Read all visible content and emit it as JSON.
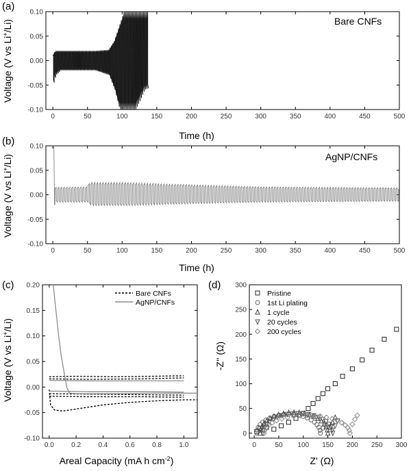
{
  "chart_data": [
    {
      "panel": "(a)",
      "type": "line",
      "annotation": "Bare CNFs",
      "xlabel": "Time (h)",
      "ylabel_parts": [
        "Voltage (V vs Li",
        "+",
        "/Li)"
      ],
      "xlim": [
        -10,
        500
      ],
      "ylim": [
        -0.1,
        0.1
      ],
      "xticks": [
        0,
        50,
        100,
        150,
        200,
        250,
        300,
        350,
        400,
        450,
        500
      ],
      "yticks": [
        -0.1,
        -0.05,
        0.0,
        0.05,
        0.1
      ],
      "ytick_labels": [
        "-0.10",
        "-0.05",
        "0.00",
        "0.05",
        "0.10"
      ],
      "color": "#000000",
      "series": {
        "start": 0,
        "end": 138,
        "period": 2,
        "envelope_t": [
          0,
          3,
          10,
          60,
          80,
          88,
          95,
          102,
          110,
          118,
          125,
          131,
          138
        ],
        "envelope_upper": [
          0.012,
          0.02,
          0.02,
          0.02,
          0.022,
          0.04,
          0.07,
          0.1,
          0.1,
          0.1,
          0.1,
          0.1,
          0.1
        ],
        "envelope_lower": [
          -0.045,
          -0.03,
          -0.02,
          -0.02,
          -0.03,
          -0.06,
          -0.1,
          -0.1,
          -0.1,
          -0.1,
          -0.08,
          -0.06,
          -0.055
        ]
      }
    },
    {
      "panel": "(b)",
      "type": "line",
      "annotation": "AgNP/CNFs",
      "xlabel": "Time (h)",
      "ylabel_parts": [
        "Voltage (V vs Li",
        "+",
        "/Li)"
      ],
      "xlim": [
        -10,
        500
      ],
      "ylim": [
        -0.1,
        0.1
      ],
      "xticks": [
        0,
        50,
        100,
        150,
        200,
        250,
        300,
        350,
        400,
        450,
        500
      ],
      "yticks": [
        -0.1,
        -0.05,
        0.0,
        0.05,
        0.1
      ],
      "ytick_labels": [
        "-0.10",
        "-0.05",
        "0.00",
        "0.05",
        "0.10"
      ],
      "color": "#7a7a7a",
      "series": {
        "start": 3,
        "end": 500,
        "period": 4,
        "initial_spike": [
          [
            0,
            0.1
          ],
          [
            1.5,
            0.1
          ],
          [
            2.5,
            -0.02
          ],
          [
            3,
            -0.02
          ]
        ],
        "envelope_t": [
          3,
          48,
          52,
          100,
          200,
          300,
          400,
          500
        ],
        "envelope_upper": [
          0.015,
          0.016,
          0.025,
          0.025,
          0.02,
          0.016,
          0.015,
          0.014
        ],
        "envelope_lower": [
          -0.015,
          -0.015,
          -0.022,
          -0.022,
          -0.018,
          -0.015,
          -0.014,
          -0.013
        ]
      }
    },
    {
      "panel": "(c)",
      "type": "line",
      "xlabel_parts": [
        "Areal Capacity (mA h cm",
        "-2",
        ")"
      ],
      "ylabel_parts": [
        "Voltage (V vs Li",
        "+",
        "/Li)"
      ],
      "xlim": [
        -0.05,
        1.1
      ],
      "ylim": [
        -0.1,
        0.2
      ],
      "xticks": [
        0.0,
        0.2,
        0.4,
        0.6,
        0.8,
        1.0
      ],
      "xtick_labels": [
        "0.0",
        "0.2",
        "0.4",
        "0.6",
        "0.8",
        "1.0"
      ],
      "yticks": [
        -0.1,
        -0.05,
        0.0,
        0.05,
        0.1,
        0.15,
        0.2
      ],
      "ytick_labels": [
        "-0.10",
        "-0.05",
        "0.00",
        "0.05",
        "0.10",
        "0.15",
        "0.20"
      ],
      "legend": [
        "Bare CNFs",
        "AgNP/CNFs"
      ],
      "series": [
        {
          "name": "Bare CNFs",
          "color": "#000000",
          "dash": "3,2",
          "curves": [
            [
              [
                0,
                -0.005
              ],
              [
                0.01,
                -0.035
              ],
              [
                0.04,
                -0.045
              ],
              [
                0.1,
                -0.047
              ],
              [
                0.2,
                -0.043
              ],
              [
                0.4,
                -0.035
              ],
              [
                0.6,
                -0.03
              ],
              [
                0.8,
                -0.027
              ],
              [
                1.0,
                -0.025
              ],
              [
                1.1,
                -0.025
              ]
            ],
            [
              [
                0,
                0.02
              ],
              [
                0.2,
                0.021
              ],
              [
                0.5,
                0.02
              ],
              [
                1.0,
                0.022
              ]
            ],
            [
              [
                0,
                0.016
              ],
              [
                0.3,
                0.015
              ],
              [
                0.7,
                0.016
              ],
              [
                1.0,
                0.018
              ]
            ],
            [
              [
                0,
                -0.018
              ],
              [
                0.3,
                -0.019
              ],
              [
                0.7,
                -0.019
              ],
              [
                1.0,
                -0.02
              ]
            ],
            [
              [
                0,
                -0.013
              ],
              [
                0.3,
                -0.014
              ],
              [
                0.7,
                -0.015
              ],
              [
                1.0,
                -0.016
              ]
            ]
          ]
        },
        {
          "name": "AgNP/CNFs",
          "color": "#8c8c8c",
          "dash": "",
          "curves": [
            [
              [
                0.03,
                0.2
              ],
              [
                0.05,
                0.15
              ],
              [
                0.07,
                0.1
              ],
              [
                0.09,
                0.06
              ],
              [
                0.11,
                0.03
              ],
              [
                0.13,
                0.0
              ],
              [
                0.15,
                -0.012
              ],
              [
                0.2,
                -0.013
              ],
              [
                0.5,
                -0.013
              ],
              [
                0.8,
                -0.012
              ],
              [
                1.1,
                -0.012
              ]
            ],
            [
              [
                0,
                0.013
              ],
              [
                0.3,
                0.012
              ],
              [
                0.7,
                0.012
              ],
              [
                1.0,
                0.012
              ]
            ],
            [
              [
                0,
                -0.008
              ],
              [
                0.3,
                -0.009
              ],
              [
                0.7,
                -0.009
              ],
              [
                1.0,
                -0.01
              ]
            ]
          ]
        }
      ]
    },
    {
      "panel": "(d)",
      "type": "scatter",
      "xlabel_parts": [
        "Z' (",
        "Ω",
        ")"
      ],
      "ylabel_parts": [
        "-Z'' (",
        "Ω",
        ")"
      ],
      "xlim": [
        -10,
        300
      ],
      "ylim": [
        -10,
        300
      ],
      "xticks": [
        0,
        50,
        100,
        150,
        200,
        250,
        300
      ],
      "yticks": [
        0,
        50,
        100,
        150,
        200,
        250,
        300
      ],
      "legend": [
        "Pristine",
        "1st Li plating",
        "1 cycle",
        "20 cycles",
        "200 cycles"
      ],
      "series": [
        {
          "name": "Pristine",
          "marker": "square",
          "color": "#222222",
          "x": [
            5,
            12,
            25,
            40,
            55,
            70,
            85,
            100,
            110,
            120,
            130,
            140,
            150,
            165,
            180,
            200,
            220,
            240,
            265,
            290
          ],
          "y": [
            3,
            10,
            12,
            8,
            15,
            22,
            30,
            40,
            50,
            60,
            70,
            80,
            90,
            100,
            115,
            130,
            148,
            168,
            190,
            210
          ]
        },
        {
          "name": "1st Li plating",
          "marker": "circle",
          "color": "#666666",
          "arc": {
            "x0": 5,
            "x1": 135,
            "h": 38,
            "tail_x": [
              140,
              146
            ],
            "tail_y": [
              10,
              16
            ],
            "n": 20
          }
        },
        {
          "name": "1 cycle",
          "marker": "triangle-up",
          "color": "#444444",
          "arc": {
            "x0": 12,
            "x1": 150,
            "h": 42,
            "tail_x": [
              155,
              160,
              165
            ],
            "tail_y": [
              12,
              22,
              32
            ],
            "n": 20
          }
        },
        {
          "name": "20 cycles",
          "marker": "triangle-down",
          "color": "#555555",
          "arc": {
            "x0": 18,
            "x1": 160,
            "h": 40,
            "tail_x": [
              165,
              170
            ],
            "tail_y": [
              15,
              25
            ],
            "n": 20
          }
        },
        {
          "name": "200 cycles",
          "marker": "diamond",
          "color": "#888888",
          "arc": {
            "x0": 20,
            "x1": 195,
            "h": 36,
            "tail_x": [
              200,
              205,
              210
            ],
            "tail_y": [
              18,
              28,
              36
            ],
            "n": 20
          }
        }
      ]
    }
  ]
}
